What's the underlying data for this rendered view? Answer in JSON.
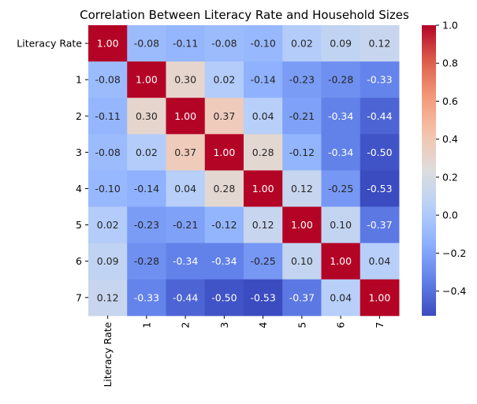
{
  "chart_data": {
    "type": "heatmap",
    "title": "Correlation Between Literacy Rate and Household Sizes",
    "x_labels": [
      "Literacy Rate",
      "1",
      "2",
      "3",
      "4",
      "5",
      "6",
      "7"
    ],
    "y_labels": [
      "Literacy Rate",
      "1",
      "2",
      "3",
      "4",
      "5",
      "6",
      "7"
    ],
    "values": [
      [
        1.0,
        -0.08,
        -0.11,
        -0.08,
        -0.1,
        0.02,
        0.09,
        0.12
      ],
      [
        -0.08,
        1.0,
        0.3,
        0.02,
        -0.14,
        -0.23,
        -0.28,
        -0.33
      ],
      [
        -0.11,
        0.3,
        1.0,
        0.37,
        0.04,
        -0.21,
        -0.34,
        -0.44
      ],
      [
        -0.08,
        0.02,
        0.37,
        1.0,
        0.28,
        -0.12,
        -0.34,
        -0.5
      ],
      [
        -0.1,
        -0.14,
        0.04,
        0.28,
        1.0,
        0.12,
        -0.25,
        -0.53
      ],
      [
        0.02,
        -0.23,
        -0.21,
        -0.12,
        0.12,
        1.0,
        0.1,
        -0.37
      ],
      [
        0.09,
        -0.28,
        -0.34,
        -0.34,
        -0.25,
        0.1,
        1.0,
        0.04
      ],
      [
        0.12,
        -0.33,
        -0.44,
        -0.5,
        -0.53,
        -0.37,
        0.04,
        1.0
      ]
    ],
    "colormap": "coolwarm",
    "vmin": -0.53,
    "vmax": 1.0,
    "colorbar_ticks": [
      1.0,
      0.8,
      0.6,
      0.4,
      0.2,
      0.0,
      -0.2,
      -0.4
    ],
    "colorbar_tick_labels": [
      "1.0",
      "0.8",
      "0.6",
      "0.4",
      "0.2",
      "0.0",
      "−0.2",
      "−0.4"
    ],
    "annotations": true,
    "number_format": "0.00"
  }
}
